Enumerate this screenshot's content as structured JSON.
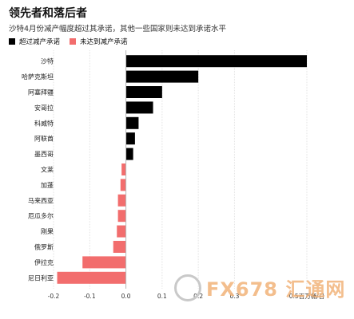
{
  "header": {
    "title": "领先者和落后者",
    "subtitle": "沙特4月份减产幅度超过其承诺，其他一些国家则未达到承诺水平"
  },
  "legend": {
    "over_label": "超过减产承诺",
    "under_label": "未达到减产承诺"
  },
  "colors": {
    "over": "#000000",
    "under": "#f26d6d",
    "grid": "#e3e3e3"
  },
  "watermark": {
    "text": "FX678 汇通网"
  },
  "chart_data": {
    "type": "bar",
    "orientation": "horizontal",
    "categories": [
      "沙特",
      "哈萨克斯坦",
      "阿塞拜疆",
      "安哥拉",
      "科威特",
      "阿联酋",
      "墨西哥",
      "文莱",
      "加蓬",
      "马来西亚",
      "厄瓜多尔",
      "刚果",
      "俄罗斯",
      "伊拉克",
      "尼日利亚"
    ],
    "values": [
      0.5,
      0.2,
      0.1,
      0.075,
      0.035,
      0.025,
      0.02,
      -0.012,
      -0.015,
      -0.022,
      -0.022,
      -0.025,
      -0.035,
      -0.12,
      -0.19
    ],
    "xlim": [
      -0.2,
      0.5
    ],
    "x_ticks": [
      "-0.2",
      "-0.1",
      "0.0",
      "0.1",
      "0.2",
      "0.3",
      "0.5百万桶/日"
    ],
    "x_tick_values": [
      -0.2,
      -0.1,
      0.0,
      0.1,
      0.2,
      0.3,
      0.5
    ],
    "grid": true
  }
}
